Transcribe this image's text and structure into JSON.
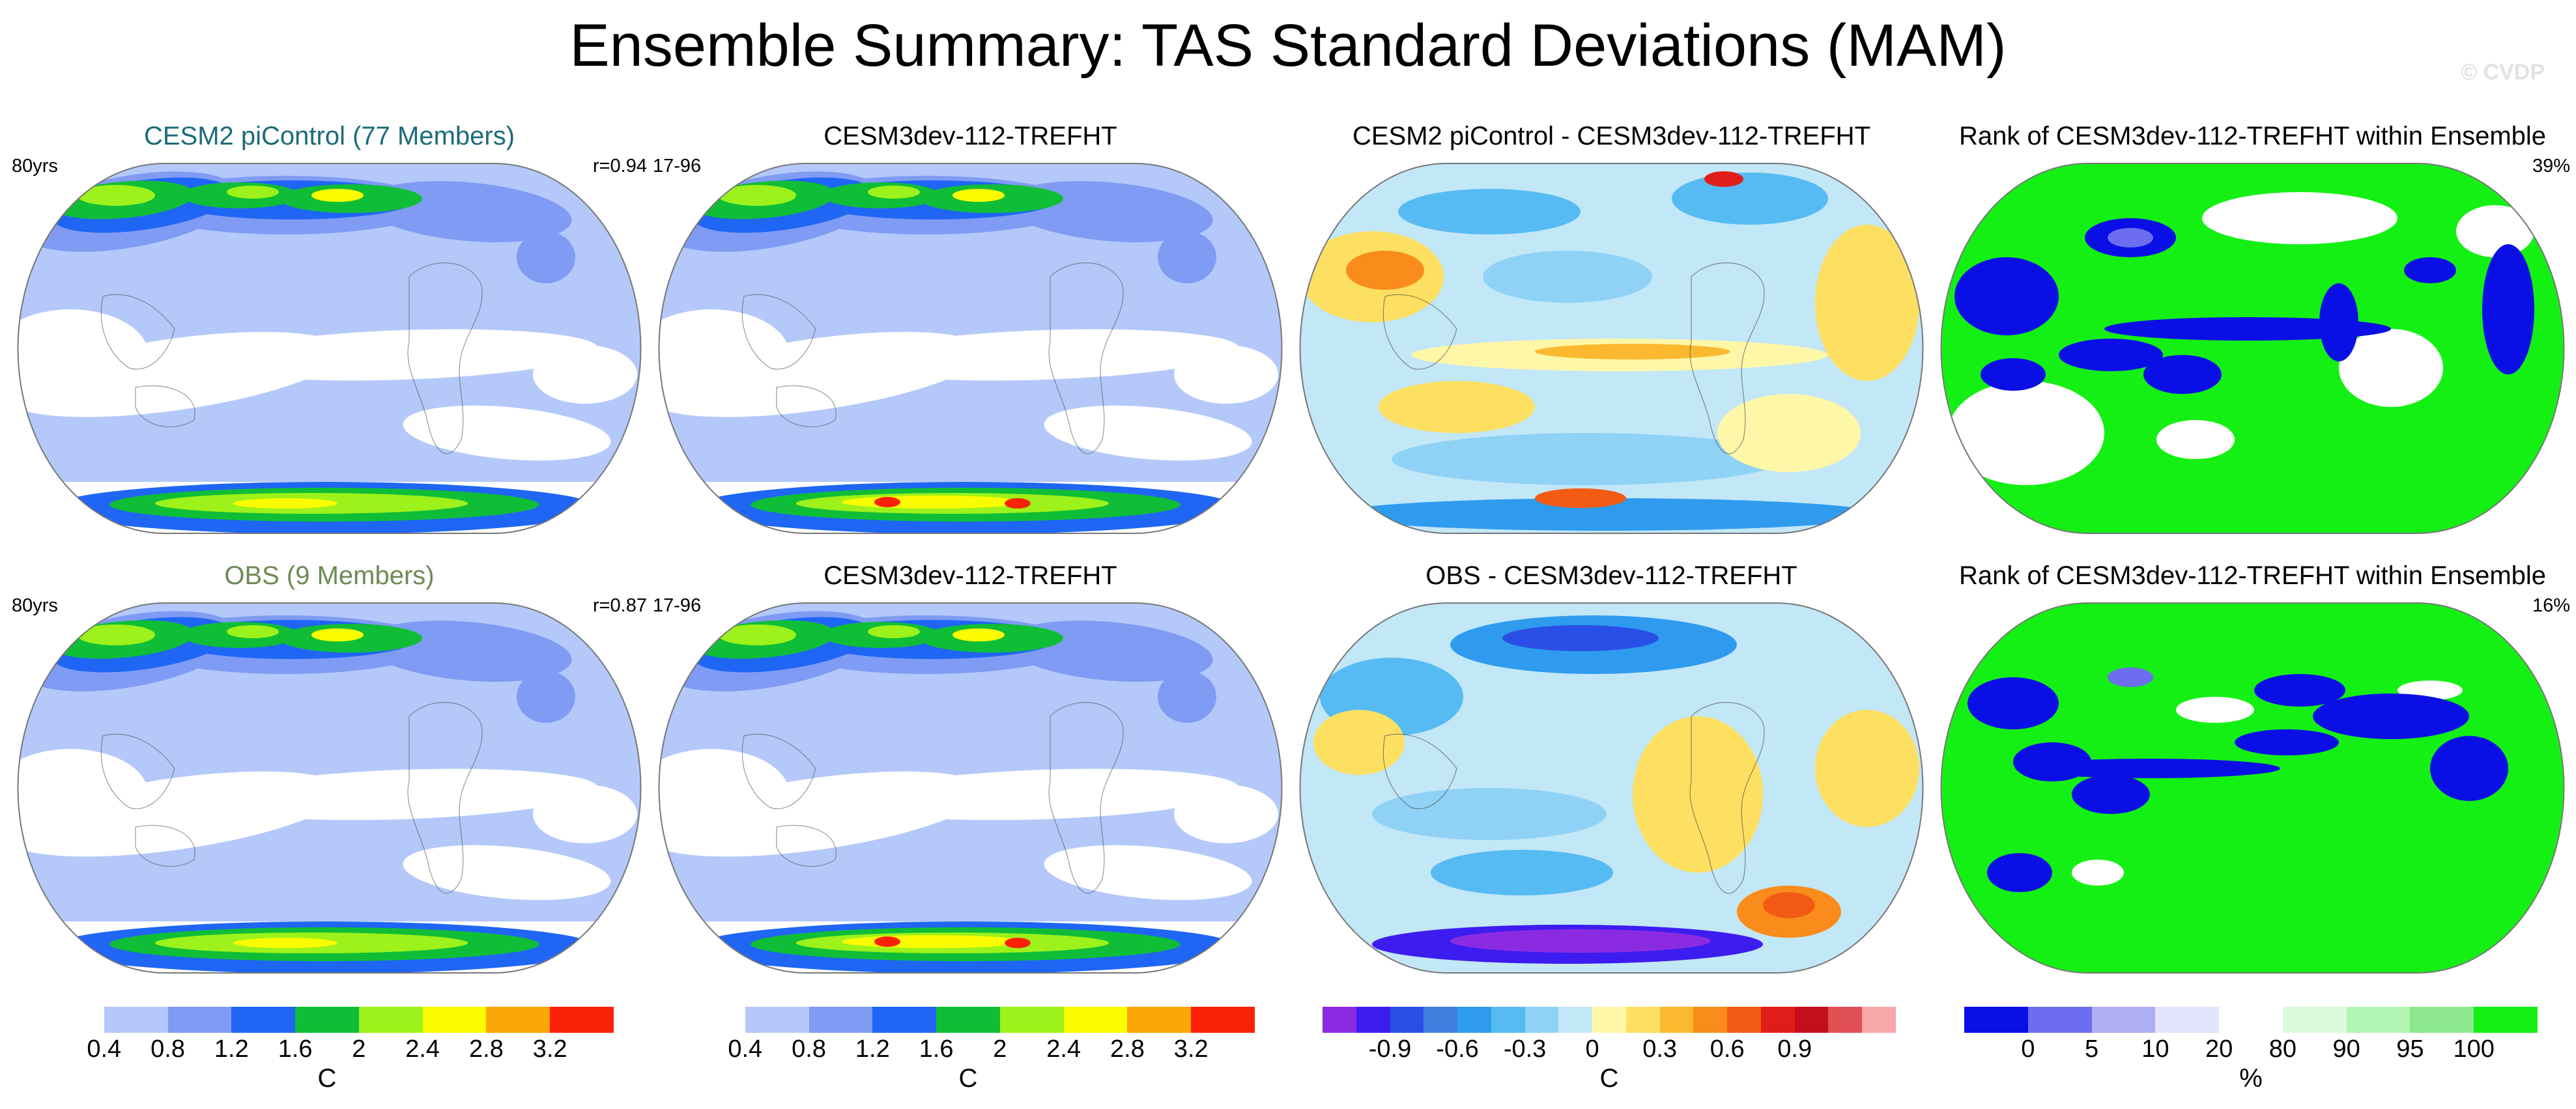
{
  "title": "Ensemble Summary: TAS Standard Deviations (MAM)",
  "watermark": "© CVDP",
  "panels": [
    {
      "title": "CESM2 piControl (77 Members)",
      "title_style": "cesm2",
      "left_label": "80yrs",
      "right_label": "r=0.94",
      "kind": "std"
    },
    {
      "title": "CESM3dev-112-TREFHT",
      "title_style": "",
      "left_label": "17-96",
      "right_label": "",
      "kind": "std"
    },
    {
      "title": "CESM2 piControl - CESM3dev-112-TREFHT",
      "title_style": "",
      "left_label": "",
      "right_label": "",
      "kind": "diff"
    },
    {
      "title": "Rank of CESM3dev-112-TREFHT within Ensemble",
      "title_style": "",
      "left_label": "",
      "right_label": "39%",
      "kind": "rank"
    },
    {
      "title": "OBS (9 Members)",
      "title_style": "obs",
      "left_label": "80yrs",
      "right_label": "r=0.87",
      "kind": "std"
    },
    {
      "title": "CESM3dev-112-TREFHT",
      "title_style": "",
      "left_label": "17-96",
      "right_label": "",
      "kind": "std"
    },
    {
      "title": "OBS - CESM3dev-112-TREFHT",
      "title_style": "",
      "left_label": "",
      "right_label": "",
      "kind": "diff2"
    },
    {
      "title": "Rank of CESM3dev-112-TREFHT within Ensemble",
      "title_style": "",
      "left_label": "",
      "right_label": "16%",
      "kind": "rank2"
    }
  ],
  "chart_data": {
    "type": "heatmap",
    "projection": "Robinson (global maps)",
    "colorbars": [
      {
        "unit": "C",
        "levels": [
          0.4,
          0.8,
          1.2,
          1.6,
          2,
          2.4,
          2.8,
          3.2
        ],
        "tick_labels": [
          "0.4",
          "0.8",
          "1.2",
          "1.6",
          "2",
          "2.4",
          "2.8",
          "3.2"
        ],
        "colors": [
          "#ffffff",
          "#b4c8fa",
          "#7f9bf4",
          "#1f66f5",
          "#0fbe36",
          "#9cf21a",
          "#fbfb02",
          "#fda607",
          "#fb2208"
        ]
      },
      {
        "unit": "C",
        "levels": [
          0.4,
          0.8,
          1.2,
          1.6,
          2,
          2.4,
          2.8,
          3.2
        ],
        "tick_labels": [
          "0.4",
          "0.8",
          "1.2",
          "1.6",
          "2",
          "2.4",
          "2.8",
          "3.2"
        ],
        "colors": [
          "#ffffff",
          "#b4c8fa",
          "#7f9bf4",
          "#1f66f5",
          "#0fbe36",
          "#9cf21a",
          "#fbfb02",
          "#fda607",
          "#fb2208"
        ]
      },
      {
        "unit": "C",
        "levels": [
          -1.05,
          -0.9,
          -0.75,
          -0.6,
          -0.45,
          -0.3,
          -0.15,
          0,
          0.15,
          0.3,
          0.45,
          0.6,
          0.75,
          0.9,
          1.05
        ],
        "tick_labels": [
          "-0.9",
          "-0.6",
          "-0.3",
          "0",
          "0.3",
          "0.6",
          "0.9"
        ],
        "tick_levels": [
          -0.9,
          -0.6,
          -0.3,
          0,
          0.3,
          0.6,
          0.9
        ],
        "colors": [
          "#8a2be2",
          "#3d1cf0",
          "#2a4fe6",
          "#3f7fe0",
          "#2f9bef",
          "#56bbf3",
          "#8fd2f6",
          "#c2e7f7",
          "#fff7a8",
          "#fde062",
          "#fbb92f",
          "#f98c1b",
          "#f35a13",
          "#e01d1a",
          "#c40e1c",
          "#e05055",
          "#f7a7a8"
        ]
      },
      {
        "unit": "%",
        "levels": [
          0,
          5,
          10,
          20,
          80,
          90,
          95,
          100
        ],
        "tick_labels": [
          "0",
          "5",
          "10",
          "20",
          "80",
          "90",
          "95",
          "100"
        ],
        "colors": [
          "#0a0fe6",
          "#6d6df0",
          "#aeaef5",
          "#e3e3fb",
          "#ffffff",
          "#dcfadc",
          "#b3f5b3",
          "#8de88d",
          "#14f014"
        ]
      }
    ]
  }
}
